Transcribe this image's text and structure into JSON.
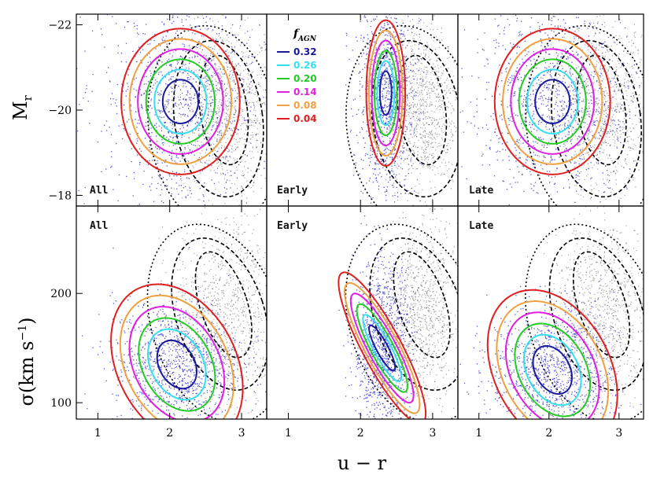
{
  "figure": {
    "xlabel": "u − r",
    "ylabel_top": "M",
    "ylabel_top_sub": "r",
    "ylabel_bottom": "σ(km s",
    "ylabel_bottom_sup": "−1",
    "ylabel_bottom_close": ")"
  },
  "legend": {
    "title": "f",
    "title_sub": "AGN",
    "entries": [
      {
        "label": "0.32",
        "color": "#1a1a9c"
      },
      {
        "label": "0.26",
        "color": "#33e0f0"
      },
      {
        "label": "0.20",
        "color": "#22cc22"
      },
      {
        "label": "0.14",
        "color": "#e020e0"
      },
      {
        "label": "0.08",
        "color": "#f0a040"
      },
      {
        "label": "0.04",
        "color": "#e02020"
      }
    ]
  },
  "chart_data": [
    {
      "type": "scatter",
      "panel": "top-left",
      "label": "All",
      "xlim": [
        0.7,
        3.35
      ],
      "ylim": [
        -17.75,
        -22.25
      ],
      "xticks": [
        1,
        2,
        3
      ],
      "yticks": [
        -18,
        -20,
        -22
      ],
      "ytick_labels": [
        "−18",
        "−20",
        "−22"
      ],
      "ylabel": "Mr",
      "center": [
        2.15,
        -20.2
      ],
      "spread": [
        0.55,
        1.3
      ]
    },
    {
      "type": "scatter",
      "panel": "top-middle",
      "label": "Early",
      "xlim": [
        0.7,
        3.35
      ],
      "ylim": [
        -17.75,
        -22.25
      ],
      "xticks": [
        1,
        2,
        3
      ],
      "center": [
        2.35,
        -20.4
      ],
      "spread": [
        0.2,
        1.2
      ]
    },
    {
      "type": "scatter",
      "panel": "top-right",
      "label": "Late",
      "xlim": [
        0.7,
        3.35
      ],
      "ylim": [
        -17.75,
        -22.25
      ],
      "xticks": [
        1,
        2,
        3
      ],
      "center": [
        2.05,
        -20.2
      ],
      "spread": [
        0.55,
        1.2
      ]
    },
    {
      "type": "scatter",
      "panel": "bottom-left",
      "label": "All",
      "xlim": [
        0.7,
        3.35
      ],
      "ylim": [
        85,
        280
      ],
      "xticks": [
        1,
        2,
        3
      ],
      "xtick_labels": [
        "1",
        "2",
        "3"
      ],
      "yticks": [
        100,
        200
      ],
      "ytick_labels": [
        "100",
        "200"
      ],
      "ylabel": "σ(km s−1)",
      "center": [
        2.1,
        135
      ],
      "spread": [
        0.45,
        30
      ]
    },
    {
      "type": "scatter",
      "panel": "bottom-middle",
      "label": "Early",
      "xlim": [
        0.7,
        3.35
      ],
      "ylim": [
        85,
        280
      ],
      "xticks": [
        1,
        2,
        3
      ],
      "xtick_labels": [
        "1",
        "2",
        "3"
      ],
      "center": [
        2.3,
        150
      ],
      "spread": [
        0.2,
        40
      ]
    },
    {
      "type": "scatter",
      "panel": "bottom-right",
      "label": "Late",
      "xlim": [
        0.7,
        3.35
      ],
      "ylim": [
        85,
        280
      ],
      "xticks": [
        1,
        2,
        3
      ],
      "xtick_labels": [
        "1",
        "2",
        "3"
      ],
      "center": [
        2.05,
        130
      ],
      "spread": [
        0.45,
        30
      ]
    }
  ]
}
